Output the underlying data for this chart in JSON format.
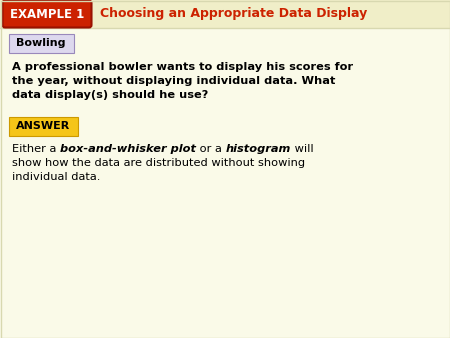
{
  "bg_color": "#fafae8",
  "header_stripe_color": "#f0eec8",
  "example_box_color": "#cc2200",
  "example_box_edge": "#991100",
  "example_box_text": "EXAMPLE 1",
  "example_box_text_color": "#ffffff",
  "header_title": "Choosing an Appropriate Data Display",
  "header_title_color": "#cc2200",
  "bowling_label": "Bowling",
  "bowling_box_color": "#ddd8ee",
  "bowling_box_border": "#9988bb",
  "body_question_line1": "A professional bowler wants to display his scores for",
  "body_question_line2": "the year, without displaying individual data. What",
  "body_question_line3": "data display(s) should he use?",
  "answer_label": "ANSWER",
  "answer_box_color": "#f5c518",
  "answer_box_border": "#cc9900",
  "body_text_color": "#000000",
  "header_sep_color": "#d8d8b0",
  "answer_line1_pre": "Either a ",
  "answer_line1_bi1": "box-and-whisker plot",
  "answer_line1_mid": " or a ",
  "answer_line1_bi2": "histogram",
  "answer_line1_post": " will",
  "answer_line2": "show how the data are distributed without showing",
  "answer_line3": "individual data.",
  "figw": 4.5,
  "figh": 3.38,
  "dpi": 100
}
